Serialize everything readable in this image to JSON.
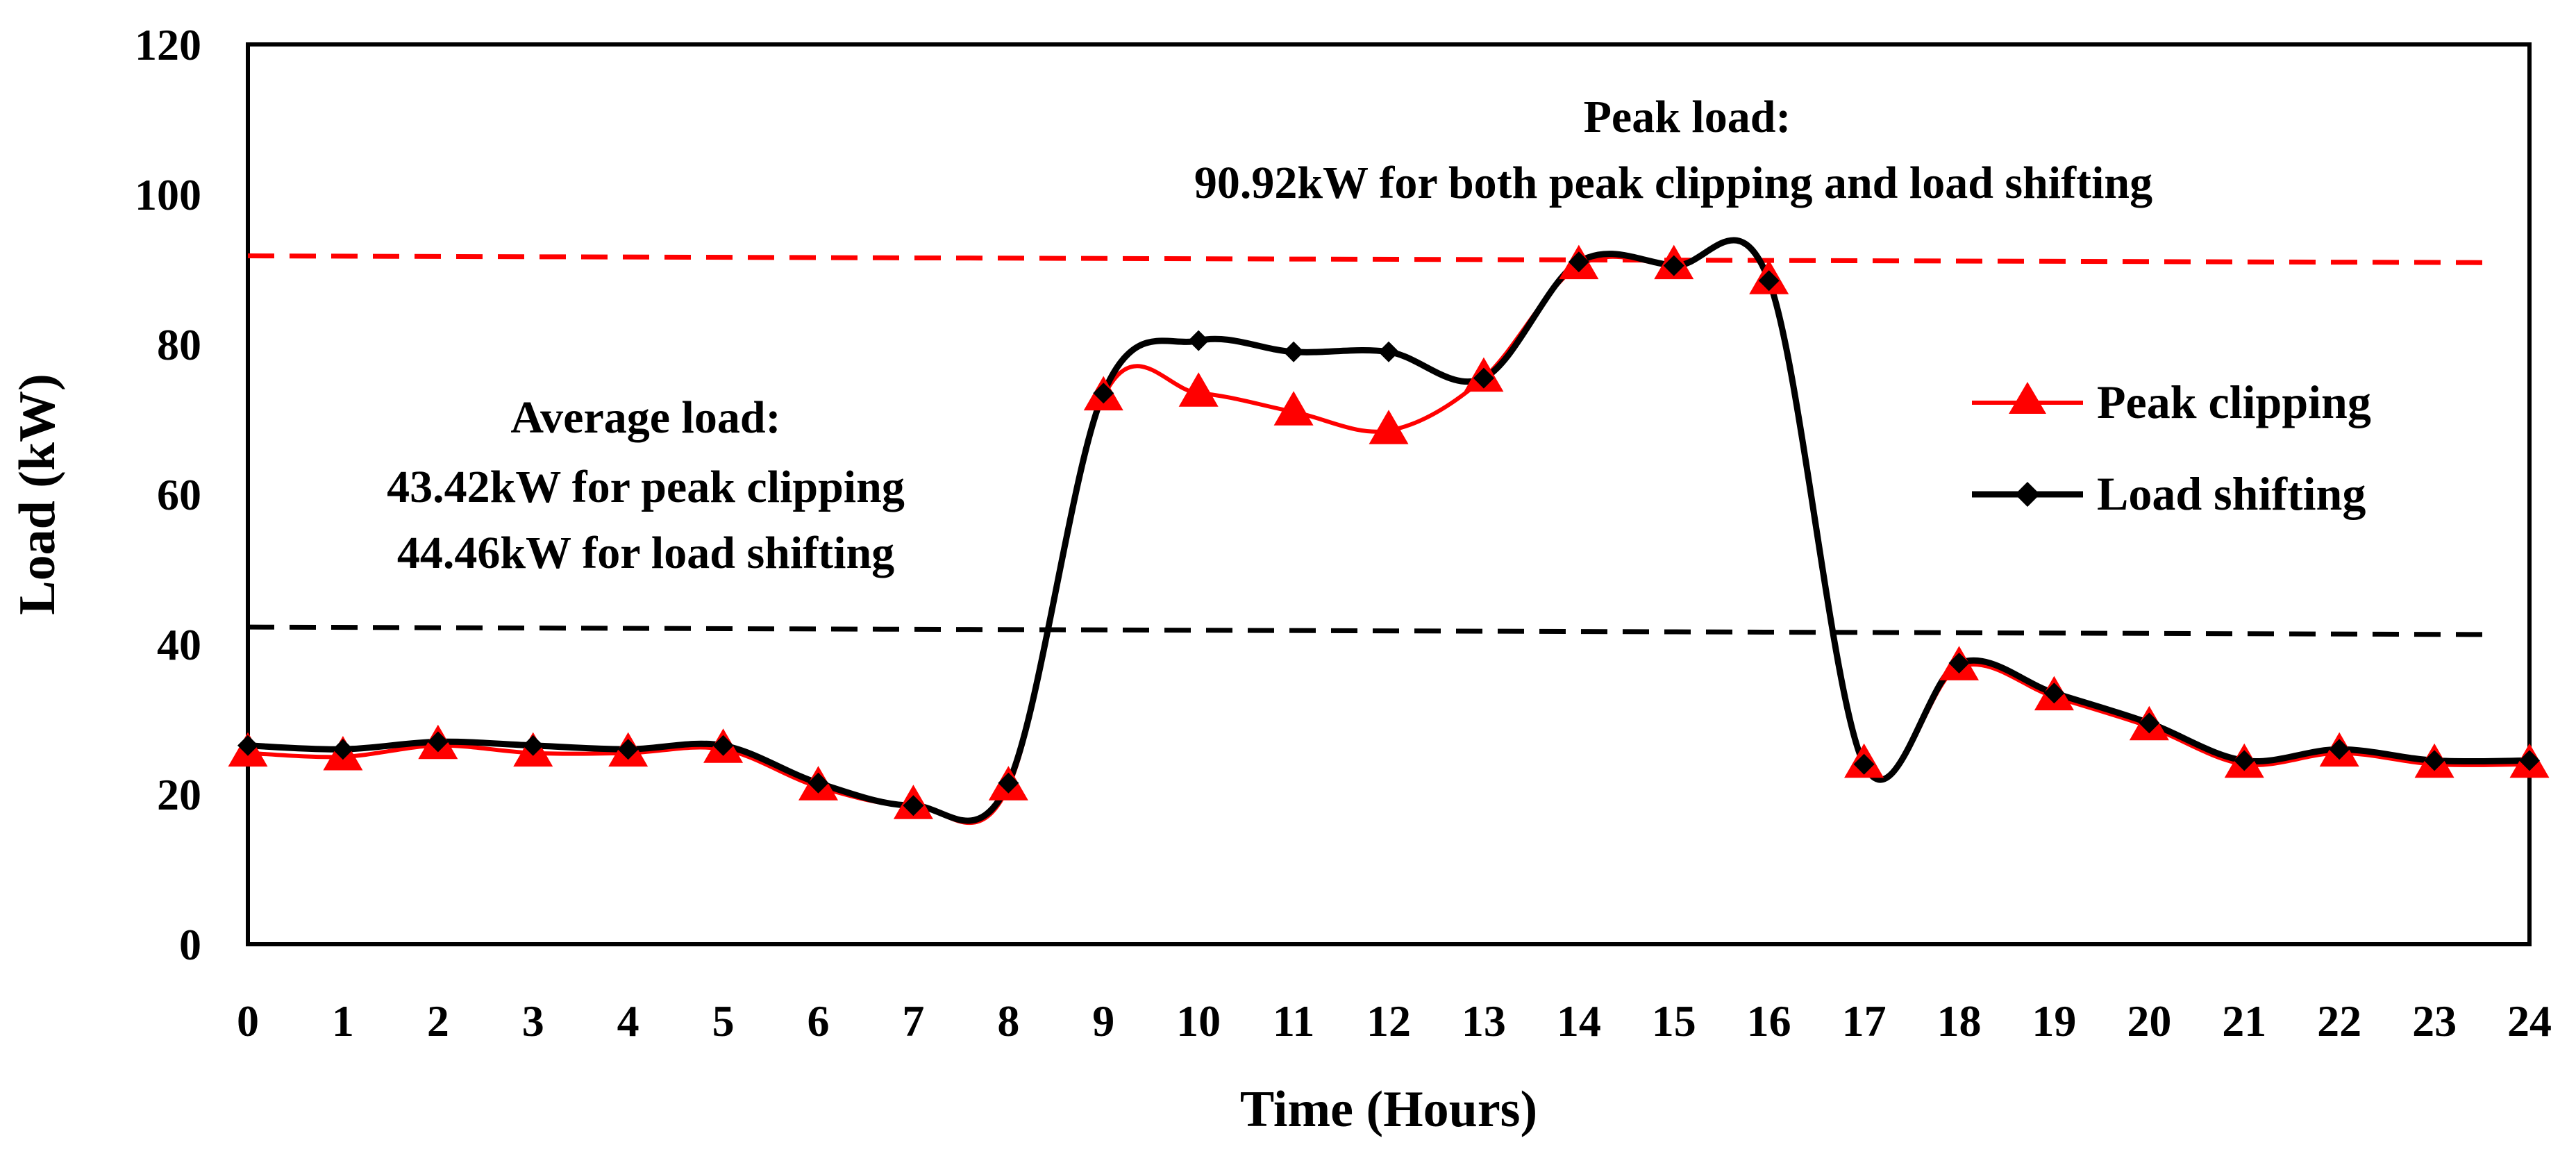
{
  "chart_data": {
    "type": "line",
    "title": "",
    "xlabel": "Time (Hours)",
    "ylabel": "Load (kW)",
    "xlim": [
      0,
      24
    ],
    "ylim": [
      0,
      120
    ],
    "x_ticks": [
      0,
      1,
      2,
      3,
      4,
      5,
      6,
      7,
      8,
      9,
      10,
      11,
      12,
      13,
      14,
      15,
      16,
      17,
      18,
      19,
      20,
      21,
      22,
      23,
      24
    ],
    "y_ticks": [
      0,
      20,
      40,
      60,
      80,
      100,
      120
    ],
    "grid": false,
    "legend_position": "right",
    "series": [
      {
        "name": "Peak clipping",
        "color": "#ff0000",
        "marker": "triangle",
        "x": [
          0,
          1,
          2,
          3,
          4,
          5,
          6,
          7,
          8,
          9,
          10,
          11,
          12,
          13,
          14,
          15,
          16,
          17,
          18,
          19,
          20,
          21,
          22,
          23,
          24
        ],
        "values": [
          25.5,
          25,
          26.5,
          25.5,
          25.5,
          26,
          21,
          18.5,
          21,
          73,
          73.5,
          71,
          68.5,
          75.5,
          90.5,
          90.5,
          88.5,
          24,
          37,
          33,
          29,
          24,
          25.5,
          24,
          24
        ]
      },
      {
        "name": "Load shifting",
        "color": "#000000",
        "marker": "diamond",
        "x": [
          0,
          1,
          2,
          3,
          4,
          5,
          6,
          7,
          8,
          9,
          10,
          11,
          12,
          13,
          14,
          15,
          16,
          17,
          18,
          19,
          20,
          21,
          22,
          23,
          24
        ],
        "values": [
          26.5,
          26,
          27,
          26.5,
          26,
          26.5,
          21.5,
          18.5,
          21.5,
          73.5,
          80.5,
          79,
          79,
          75.5,
          91,
          90.5,
          88.5,
          24,
          37.5,
          33.5,
          29.5,
          24.5,
          26,
          24.5,
          24.5
        ]
      }
    ],
    "reference_lines": [
      {
        "name": "Peak load",
        "color": "#ff0000",
        "y_start": 91.8,
        "y_end": 90.9,
        "style": "dashed"
      },
      {
        "name": "Average load",
        "color": "#000000",
        "y_start": 42.3,
        "y_end": 41.3,
        "style": "dashed"
      }
    ],
    "annotations": {
      "peak_line1": "Peak load:",
      "peak_line2": "90.92kW for both peak clipping and load shifting",
      "avg_line1": "Average load:",
      "avg_line2": "43.42kW for peak clipping",
      "avg_line3": "44.46kW for load shifting"
    }
  }
}
